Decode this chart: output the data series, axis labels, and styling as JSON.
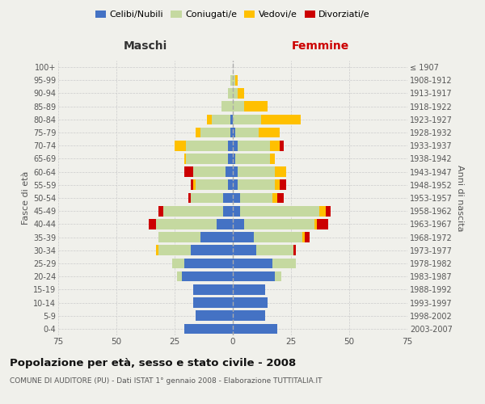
{
  "age_groups": [
    "0-4",
    "5-9",
    "10-14",
    "15-19",
    "20-24",
    "25-29",
    "30-34",
    "35-39",
    "40-44",
    "45-49",
    "50-54",
    "55-59",
    "60-64",
    "65-69",
    "70-74",
    "75-79",
    "80-84",
    "85-89",
    "90-94",
    "95-99",
    "100+"
  ],
  "birth_years": [
    "2003-2007",
    "1998-2002",
    "1993-1997",
    "1988-1992",
    "1983-1987",
    "1978-1982",
    "1973-1977",
    "1968-1972",
    "1963-1967",
    "1958-1962",
    "1953-1957",
    "1948-1952",
    "1943-1947",
    "1938-1942",
    "1933-1937",
    "1928-1932",
    "1923-1927",
    "1918-1922",
    "1913-1917",
    "1908-1912",
    "≤ 1907"
  ],
  "male": {
    "celibe": [
      21,
      16,
      17,
      17,
      22,
      21,
      18,
      14,
      7,
      4,
      4,
      2,
      3,
      2,
      2,
      1,
      1,
      0,
      0,
      0,
      0
    ],
    "coniugato": [
      0,
      0,
      0,
      0,
      2,
      5,
      14,
      18,
      26,
      26,
      14,
      14,
      14,
      18,
      18,
      13,
      8,
      5,
      2,
      1,
      0
    ],
    "vedovo": [
      0,
      0,
      0,
      0,
      0,
      0,
      1,
      0,
      0,
      0,
      0,
      1,
      0,
      1,
      5,
      2,
      2,
      0,
      0,
      0,
      0
    ],
    "divorziato": [
      0,
      0,
      0,
      0,
      0,
      0,
      0,
      0,
      3,
      2,
      1,
      1,
      4,
      0,
      0,
      0,
      0,
      0,
      0,
      0,
      0
    ]
  },
  "female": {
    "nubile": [
      19,
      14,
      15,
      14,
      18,
      17,
      10,
      9,
      5,
      3,
      3,
      2,
      2,
      1,
      2,
      1,
      0,
      0,
      0,
      0,
      0
    ],
    "coniugata": [
      0,
      0,
      0,
      0,
      3,
      10,
      16,
      21,
      30,
      34,
      14,
      16,
      16,
      15,
      14,
      10,
      12,
      5,
      2,
      1,
      0
    ],
    "vedova": [
      0,
      0,
      0,
      0,
      0,
      0,
      0,
      1,
      1,
      3,
      2,
      2,
      5,
      2,
      4,
      9,
      17,
      10,
      3,
      1,
      0
    ],
    "divorziata": [
      0,
      0,
      0,
      0,
      0,
      0,
      1,
      2,
      5,
      2,
      3,
      3,
      0,
      0,
      2,
      0,
      0,
      0,
      0,
      0,
      0
    ]
  },
  "colors": {
    "celibe": "#4472c4",
    "coniugato": "#c5d9a0",
    "vedovo": "#ffc000",
    "divorziato": "#cc0000"
  },
  "title": "Popolazione per età, sesso e stato civile - 2008",
  "subtitle": "COMUNE DI AUDITORE (PU) - Dati ISTAT 1° gennaio 2008 - Elaborazione TUTTITALIA.IT",
  "xlabel_left": "Maschi",
  "xlabel_right": "Femmine",
  "ylabel_left": "Fasce di età",
  "ylabel_right": "Anni di nascita",
  "xlim": 75,
  "xticks": [
    -75,
    -50,
    -25,
    0,
    25,
    50,
    75
  ],
  "background_color": "#f0f0eb",
  "grid_color": "#cccccc"
}
